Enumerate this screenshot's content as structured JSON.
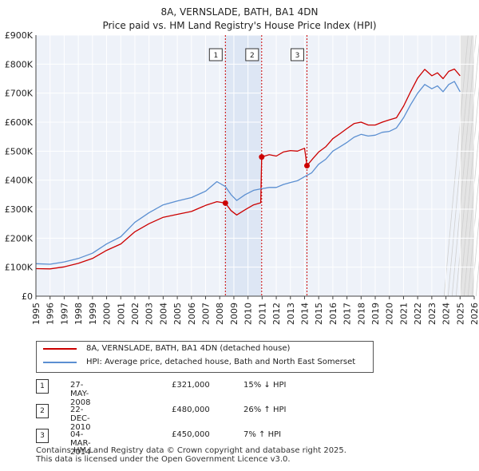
{
  "chart_data": {
    "type": "line",
    "title": "8A, VERNSLADE, BATH, BA1 4DN",
    "subtitle": "Price paid vs. HM Land Registry's House Price Index (HPI)",
    "xlim": [
      1995,
      2026
    ],
    "ylim": [
      0,
      900000
    ],
    "y_ticks": [
      {
        "value": 0,
        "label": "£0"
      },
      {
        "value": 100000,
        "label": "£100K"
      },
      {
        "value": 200000,
        "label": "£200K"
      },
      {
        "value": 300000,
        "label": "£300K"
      },
      {
        "value": 400000,
        "label": "£400K"
      },
      {
        "value": 500000,
        "label": "£500K"
      },
      {
        "value": 600000,
        "label": "£600K"
      },
      {
        "value": 700000,
        "label": "£700K"
      },
      {
        "value": 800000,
        "label": "£800K"
      },
      {
        "value": 900000,
        "label": "£900K"
      }
    ],
    "x_ticks": [
      "1995",
      "1996",
      "1997",
      "1998",
      "1999",
      "2000",
      "2001",
      "2002",
      "2003",
      "2004",
      "2005",
      "2006",
      "2007",
      "2008",
      "2009",
      "2010",
      "2011",
      "2012",
      "2013",
      "2014",
      "2015",
      "2016",
      "2017",
      "2018",
      "2019",
      "2020",
      "2021",
      "2022",
      "2023",
      "2024",
      "2025",
      "2026"
    ],
    "series": [
      {
        "name": "8A, VERNSLADE, BATH, BA1 4DN (detached house)",
        "color": "#cc0000",
        "points": [
          [
            1995.0,
            95000
          ],
          [
            1996.0,
            94000
          ],
          [
            1997.0,
            101000
          ],
          [
            1998.0,
            113000
          ],
          [
            1999.0,
            130000
          ],
          [
            2000.0,
            158000
          ],
          [
            2001.0,
            180000
          ],
          [
            2002.0,
            222000
          ],
          [
            2003.0,
            250000
          ],
          [
            2004.0,
            272000
          ],
          [
            2005.0,
            282000
          ],
          [
            2006.0,
            292000
          ],
          [
            2007.0,
            313000
          ],
          [
            2007.8,
            326000
          ],
          [
            2008.4,
            321000
          ],
          [
            2008.8,
            295000
          ],
          [
            2009.2,
            280000
          ],
          [
            2009.8,
            298000
          ],
          [
            2010.4,
            315000
          ],
          [
            2010.9,
            322000
          ],
          [
            2010.97,
            480000
          ],
          [
            2011.5,
            488000
          ],
          [
            2012.0,
            483000
          ],
          [
            2012.5,
            497000
          ],
          [
            2013.0,
            502000
          ],
          [
            2013.5,
            500000
          ],
          [
            2014.0,
            510000
          ],
          [
            2014.17,
            450000
          ],
          [
            2014.6,
            475000
          ],
          [
            2015.0,
            497000
          ],
          [
            2015.5,
            515000
          ],
          [
            2016.0,
            543000
          ],
          [
            2016.5,
            560000
          ],
          [
            2017.0,
            578000
          ],
          [
            2017.5,
            595000
          ],
          [
            2018.0,
            600000
          ],
          [
            2018.5,
            590000
          ],
          [
            2019.0,
            590000
          ],
          [
            2019.5,
            600000
          ],
          [
            2020.0,
            608000
          ],
          [
            2020.5,
            615000
          ],
          [
            2021.0,
            655000
          ],
          [
            2021.5,
            705000
          ],
          [
            2022.0,
            752000
          ],
          [
            2022.5,
            782000
          ],
          [
            2023.0,
            760000
          ],
          [
            2023.4,
            770000
          ],
          [
            2023.8,
            750000
          ],
          [
            2024.2,
            775000
          ],
          [
            2024.6,
            783000
          ],
          [
            2025.0,
            760000
          ]
        ]
      },
      {
        "name": "HPI: Average price, detached house, Bath and North East Somerset",
        "color": "#5b8fd1",
        "points": [
          [
            1995.0,
            112000
          ],
          [
            1996.0,
            110000
          ],
          [
            1997.0,
            118000
          ],
          [
            1998.0,
            130000
          ],
          [
            1999.0,
            148000
          ],
          [
            2000.0,
            180000
          ],
          [
            2001.0,
            205000
          ],
          [
            2002.0,
            255000
          ],
          [
            2003.0,
            288000
          ],
          [
            2004.0,
            315000
          ],
          [
            2005.0,
            328000
          ],
          [
            2006.0,
            340000
          ],
          [
            2007.0,
            362000
          ],
          [
            2007.8,
            395000
          ],
          [
            2008.4,
            378000
          ],
          [
            2008.8,
            350000
          ],
          [
            2009.2,
            330000
          ],
          [
            2009.8,
            350000
          ],
          [
            2010.4,
            365000
          ],
          [
            2010.9,
            370000
          ],
          [
            2011.5,
            375000
          ],
          [
            2012.0,
            375000
          ],
          [
            2012.5,
            385000
          ],
          [
            2013.0,
            392000
          ],
          [
            2013.5,
            398000
          ],
          [
            2014.0,
            412000
          ],
          [
            2014.5,
            425000
          ],
          [
            2015.0,
            455000
          ],
          [
            2015.5,
            472000
          ],
          [
            2016.0,
            500000
          ],
          [
            2016.5,
            515000
          ],
          [
            2017.0,
            530000
          ],
          [
            2017.5,
            548000
          ],
          [
            2018.0,
            558000
          ],
          [
            2018.5,
            552000
          ],
          [
            2019.0,
            555000
          ],
          [
            2019.5,
            565000
          ],
          [
            2020.0,
            568000
          ],
          [
            2020.5,
            580000
          ],
          [
            2021.0,
            615000
          ],
          [
            2021.5,
            660000
          ],
          [
            2022.0,
            700000
          ],
          [
            2022.5,
            730000
          ],
          [
            2023.0,
            715000
          ],
          [
            2023.4,
            725000
          ],
          [
            2023.8,
            705000
          ],
          [
            2024.2,
            730000
          ],
          [
            2024.6,
            740000
          ],
          [
            2025.0,
            705000
          ]
        ]
      }
    ],
    "sales": [
      {
        "id": "1",
        "x": 2008.4,
        "price": 321000
      },
      {
        "id": "2",
        "x": 2010.97,
        "price": 480000
      },
      {
        "id": "3",
        "x": 2014.17,
        "price": 450000
      }
    ],
    "shaded_ranges": [
      [
        2008.4,
        2010.97
      ]
    ],
    "forecast_start": 2025.0
  },
  "legend": {
    "property_label": "8A, VERNSLADE, BATH, BA1 4DN (detached house)",
    "hpi_label": "HPI: Average price, detached house, Bath and North East Somerset",
    "property_color": "#cc0000",
    "hpi_color": "#5b8fd1"
  },
  "transactions": [
    {
      "num": "1",
      "date": "27-MAY-2008",
      "price": "£321,000",
      "hpi": "15% ↓ HPI"
    },
    {
      "num": "2",
      "date": "22-DEC-2010",
      "price": "£480,000",
      "hpi": "26% ↑ HPI"
    },
    {
      "num": "3",
      "date": "04-MAR-2014",
      "price": "£450,000",
      "hpi": "7% ↑ HPI"
    }
  ],
  "footer": {
    "line1": "Contains HM Land Registry data © Crown copyright and database right 2025.",
    "line2": "This data is licensed under the Open Government Licence v3.0."
  }
}
